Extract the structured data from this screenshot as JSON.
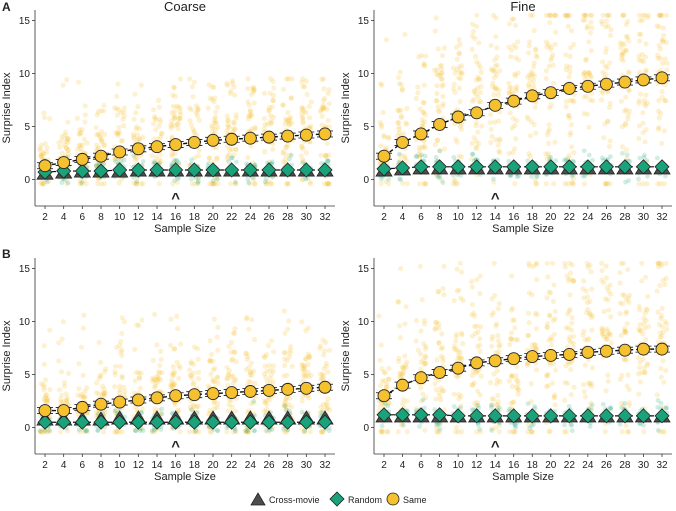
{
  "figure": {
    "row_labels": [
      "A",
      "B"
    ],
    "legend": {
      "entries": [
        {
          "name": "Cross-movie",
          "shape": "triangle",
          "color": "#4d4d4d"
        },
        {
          "name": "Random",
          "shape": "diamond",
          "color": "#1aa37a"
        },
        {
          "name": "Same",
          "shape": "circle",
          "color": "#f5c12e"
        }
      ]
    },
    "colors": {
      "same": "#f5c12e",
      "random": "#1aa37a",
      "cross": "#4d4d4d",
      "outline": "#222222",
      "axis": "#333333"
    }
  },
  "chart_data": [
    {
      "id": "A-coarse",
      "type": "scatter",
      "title": "Coarse",
      "row": "A",
      "xlabel": "Sample Size",
      "ylabel": "Surprise Index",
      "ylim": [
        -2.5,
        16
      ],
      "x": [
        2,
        4,
        6,
        8,
        10,
        12,
        14,
        16,
        18,
        20,
        22,
        24,
        26,
        28,
        30,
        32
      ],
      "yticks": [
        0,
        5,
        10,
        15
      ],
      "marker_label": "^",
      "marker_x": 16,
      "series": [
        {
          "name": "Same",
          "values": [
            1.3,
            1.6,
            1.9,
            2.2,
            2.6,
            2.9,
            3.1,
            3.3,
            3.5,
            3.7,
            3.8,
            3.9,
            4.0,
            4.1,
            4.2,
            4.3
          ],
          "spread_max": 9.5
        },
        {
          "name": "Random",
          "values": [
            0.7,
            0.8,
            0.8,
            0.8,
            0.9,
            0.9,
            0.9,
            0.9,
            0.9,
            0.9,
            0.9,
            0.9,
            0.9,
            0.9,
            0.9,
            0.9
          ],
          "spread_max": 3
        },
        {
          "name": "Cross-movie",
          "values": [
            0.5,
            0.6,
            0.7,
            0.7,
            0.7,
            0.8,
            0.8,
            0.8,
            0.8,
            0.8,
            0.8,
            0.8,
            0.8,
            0.8,
            0.8,
            0.8
          ]
        }
      ]
    },
    {
      "id": "A-fine",
      "type": "scatter",
      "title": "Fine",
      "row": "A",
      "xlabel": "Sample Size",
      "ylabel": "Surprise Index",
      "ylim": [
        -2.5,
        16
      ],
      "x": [
        2,
        4,
        6,
        8,
        10,
        12,
        14,
        16,
        18,
        20,
        22,
        24,
        26,
        28,
        30,
        32
      ],
      "yticks": [
        0,
        5,
        10,
        15
      ],
      "marker_label": "^",
      "marker_x": 14,
      "series": [
        {
          "name": "Same",
          "values": [
            2.2,
            3.5,
            4.3,
            5.2,
            5.9,
            6.3,
            7.0,
            7.4,
            7.9,
            8.2,
            8.6,
            8.8,
            9.0,
            9.2,
            9.4,
            9.6
          ],
          "spread_max": 15.5
        },
        {
          "name": "Random",
          "values": [
            1.0,
            1.1,
            1.2,
            1.2,
            1.2,
            1.2,
            1.2,
            1.2,
            1.2,
            1.2,
            1.2,
            1.2,
            1.2,
            1.2,
            1.2,
            1.2
          ],
          "spread_max": 4
        },
        {
          "name": "Cross-movie",
          "values": [
            0.8,
            0.9,
            1.0,
            1.0,
            1.0,
            1.0,
            1.0,
            1.0,
            1.0,
            1.0,
            1.0,
            1.0,
            1.0,
            1.0,
            1.0,
            1.0
          ]
        }
      ]
    },
    {
      "id": "B-coarse",
      "type": "scatter",
      "title": "",
      "row": "B",
      "xlabel": "Sample Size",
      "ylabel": "Surprise Index",
      "ylim": [
        -2.5,
        16
      ],
      "x": [
        2,
        4,
        6,
        8,
        10,
        12,
        14,
        16,
        18,
        20,
        22,
        24,
        26,
        28,
        30,
        32
      ],
      "yticks": [
        0,
        5,
        10,
        15
      ],
      "marker_label": "^",
      "marker_x": 16,
      "series": [
        {
          "name": "Same",
          "values": [
            1.6,
            1.6,
            1.9,
            2.2,
            2.4,
            2.6,
            2.8,
            3.0,
            3.1,
            3.2,
            3.3,
            3.4,
            3.5,
            3.6,
            3.7,
            3.8
          ],
          "spread_max": 11
        },
        {
          "name": "Random",
          "values": [
            0.5,
            0.5,
            0.5,
            0.5,
            0.5,
            0.5,
            0.5,
            0.5,
            0.5,
            0.5,
            0.5,
            0.5,
            0.5,
            0.5,
            0.5,
            0.5
          ],
          "spread_max": 3
        },
        {
          "name": "Cross-movie",
          "values": [
            0.7,
            0.7,
            0.7,
            0.7,
            0.8,
            0.8,
            0.8,
            0.8,
            0.8,
            0.8,
            0.8,
            0.8,
            0.8,
            0.8,
            0.8,
            0.8
          ]
        }
      ]
    },
    {
      "id": "B-fine",
      "type": "scatter",
      "title": "",
      "row": "B",
      "xlabel": "Sample Size",
      "ylabel": "Surprise Index",
      "ylim": [
        -2.5,
        16
      ],
      "x": [
        2,
        4,
        6,
        8,
        10,
        12,
        14,
        16,
        18,
        20,
        22,
        24,
        26,
        28,
        30,
        32
      ],
      "yticks": [
        0,
        5,
        10,
        15
      ],
      "marker_label": "^",
      "marker_x": 14,
      "series": [
        {
          "name": "Same",
          "values": [
            3.0,
            4.0,
            4.7,
            5.2,
            5.6,
            6.1,
            6.3,
            6.5,
            6.7,
            6.8,
            6.9,
            7.1,
            7.2,
            7.3,
            7.4,
            7.4
          ],
          "spread_max": 15.5
        },
        {
          "name": "Random",
          "values": [
            1.2,
            1.2,
            1.2,
            1.2,
            1.1,
            1.1,
            1.1,
            1.1,
            1.1,
            1.1,
            1.1,
            1.1,
            1.1,
            1.1,
            1.1,
            1.1
          ],
          "spread_max": 4
        },
        {
          "name": "Cross-movie",
          "values": [
            1.0,
            1.0,
            1.0,
            1.0,
            1.0,
            1.0,
            1.0,
            1.0,
            1.0,
            1.0,
            1.0,
            1.0,
            1.0,
            1.0,
            1.0,
            1.0
          ]
        }
      ]
    }
  ]
}
